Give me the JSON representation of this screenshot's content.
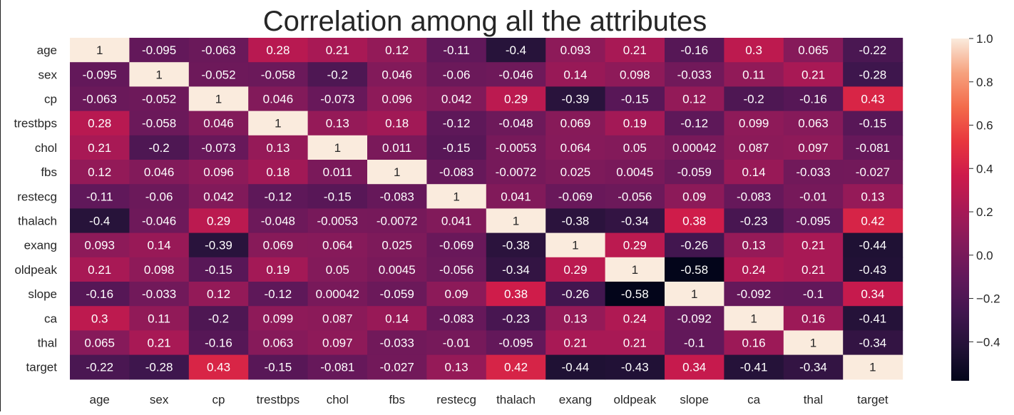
{
  "chart_data": {
    "type": "heatmap",
    "title": "Correlation among all the attributes",
    "row_labels": [
      "age",
      "sex",
      "cp",
      "trestbps",
      "chol",
      "fbs",
      "restecg",
      "thalach",
      "exang",
      "oldpeak",
      "slope",
      "ca",
      "thal",
      "target"
    ],
    "col_labels": [
      "age",
      "sex",
      "cp",
      "trestbps",
      "chol",
      "fbs",
      "restecg",
      "thalach",
      "exang",
      "oldpeak",
      "slope",
      "ca",
      "thal",
      "target"
    ],
    "values": [
      [
        "1",
        "-0.095",
        "-0.063",
        "0.28",
        "0.21",
        "0.12",
        "-0.11",
        "-0.4",
        "0.093",
        "0.21",
        "-0.16",
        "0.3",
        "0.065",
        "-0.22"
      ],
      [
        "-0.095",
        "1",
        "-0.052",
        "-0.058",
        "-0.2",
        "0.046",
        "-0.06",
        "-0.046",
        "0.14",
        "0.098",
        "-0.033",
        "0.11",
        "0.21",
        "-0.28"
      ],
      [
        "-0.063",
        "-0.052",
        "1",
        "0.046",
        "-0.073",
        "0.096",
        "0.042",
        "0.29",
        "-0.39",
        "-0.15",
        "0.12",
        "-0.2",
        "-0.16",
        "0.43"
      ],
      [
        "0.28",
        "-0.058",
        "0.046",
        "1",
        "0.13",
        "0.18",
        "-0.12",
        "-0.048",
        "0.069",
        "0.19",
        "-0.12",
        "0.099",
        "0.063",
        "-0.15"
      ],
      [
        "0.21",
        "-0.2",
        "-0.073",
        "0.13",
        "1",
        "0.011",
        "-0.15",
        "-0.0053",
        "0.064",
        "0.05",
        "0.00042",
        "0.087",
        "0.097",
        "-0.081"
      ],
      [
        "0.12",
        "0.046",
        "0.096",
        "0.18",
        "0.011",
        "1",
        "-0.083",
        "-0.0072",
        "0.025",
        "0.0045",
        "-0.059",
        "0.14",
        "-0.033",
        "-0.027"
      ],
      [
        "-0.11",
        "-0.06",
        "0.042",
        "-0.12",
        "-0.15",
        "-0.083",
        "1",
        "0.041",
        "-0.069",
        "-0.056",
        "0.09",
        "-0.083",
        "-0.01",
        "0.13"
      ],
      [
        "-0.4",
        "-0.046",
        "0.29",
        "-0.048",
        "-0.0053",
        "-0.0072",
        "0.041",
        "1",
        "-0.38",
        "-0.34",
        "0.38",
        "-0.23",
        "-0.095",
        "0.42"
      ],
      [
        "0.093",
        "0.14",
        "-0.39",
        "0.069",
        "0.064",
        "0.025",
        "-0.069",
        "-0.38",
        "1",
        "0.29",
        "-0.26",
        "0.13",
        "0.21",
        "-0.44"
      ],
      [
        "0.21",
        "0.098",
        "-0.15",
        "0.19",
        "0.05",
        "0.0045",
        "-0.056",
        "-0.34",
        "0.29",
        "1",
        "-0.58",
        "0.24",
        "0.21",
        "-0.43"
      ],
      [
        "-0.16",
        "-0.033",
        "0.12",
        "-0.12",
        "0.00042",
        "-0.059",
        "0.09",
        "0.38",
        "-0.26",
        "-0.58",
        "1",
        "-0.092",
        "-0.1",
        "0.34"
      ],
      [
        "0.3",
        "0.11",
        "-0.2",
        "0.099",
        "0.087",
        "0.14",
        "-0.083",
        "-0.23",
        "0.13",
        "0.24",
        "-0.092",
        "1",
        "0.16",
        "-0.41"
      ],
      [
        "0.065",
        "0.21",
        "-0.16",
        "0.063",
        "0.097",
        "-0.033",
        "-0.01",
        "-0.095",
        "0.21",
        "0.21",
        "-0.1",
        "0.16",
        "1",
        "-0.34"
      ],
      [
        "-0.22",
        "-0.28",
        "0.43",
        "-0.15",
        "-0.081",
        "-0.027",
        "0.13",
        "0.42",
        "-0.44",
        "-0.43",
        "0.34",
        "-0.41",
        "-0.34",
        "1"
      ]
    ],
    "colorbar": {
      "min": -0.58,
      "max": 1.0,
      "ticks": [
        1.0,
        0.8,
        0.6,
        0.4,
        0.2,
        0.0,
        -0.2,
        -0.4
      ],
      "tick_labels": [
        "1.0",
        "0.8",
        "0.6",
        "0.4",
        "0.2",
        "0.0",
        "−0.2",
        "−0.4"
      ],
      "colormap": "rocket"
    },
    "grid": false
  }
}
